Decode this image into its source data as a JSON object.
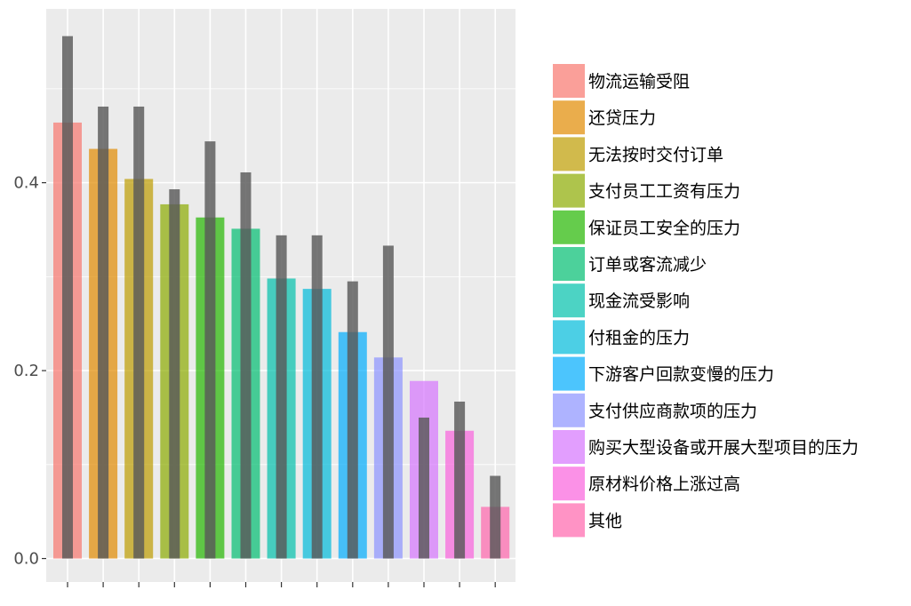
{
  "chart_data": {
    "type": "bar",
    "categories": [
      "物流运输受阻",
      "还贷压力",
      "无法按时交付订单",
      "支付员工工资有压力",
      "保证员工安全的压力",
      "订单或客流减少",
      "现金流受影响",
      "付租金的压力",
      "下游客户回款变慢的压力",
      "支付供应商款项的压力",
      "购买大型设备或开展大型项目的压力",
      "原材料价格上涨过高",
      "其他"
    ],
    "series": [
      {
        "values": [
          0.464,
          0.436,
          0.404,
          0.377,
          0.363,
          0.351,
          0.298,
          0.287,
          0.241,
          0.214,
          0.189,
          0.136,
          0.055
        ]
      },
      {
        "values": [
          0.556,
          0.481,
          0.481,
          0.393,
          0.444,
          0.411,
          0.344,
          0.344,
          0.295,
          0.333,
          0.15,
          0.167,
          0.088
        ]
      }
    ],
    "colors": [
      "#F8766D",
      "#E18A00",
      "#BE9C00",
      "#8CAB00",
      "#24B700",
      "#00BE70",
      "#00C1AB",
      "#00BBDA",
      "#00ACFC",
      "#8B93FF",
      "#D575FE",
      "#F962DD",
      "#FF65AC"
    ],
    "overlay_color": "#595959",
    "panel_background": "#EBEBEB",
    "gridline_color": "#FFFFFF",
    "yticks": [
      "0.0",
      "0.2",
      "0.4"
    ],
    "ytick_values": [
      0.0,
      0.2,
      0.4
    ],
    "ylim": [
      -0.025,
      0.585
    ],
    "xlabel": "",
    "ylabel": "",
    "title": "",
    "grid": true,
    "legend_position": "right"
  }
}
